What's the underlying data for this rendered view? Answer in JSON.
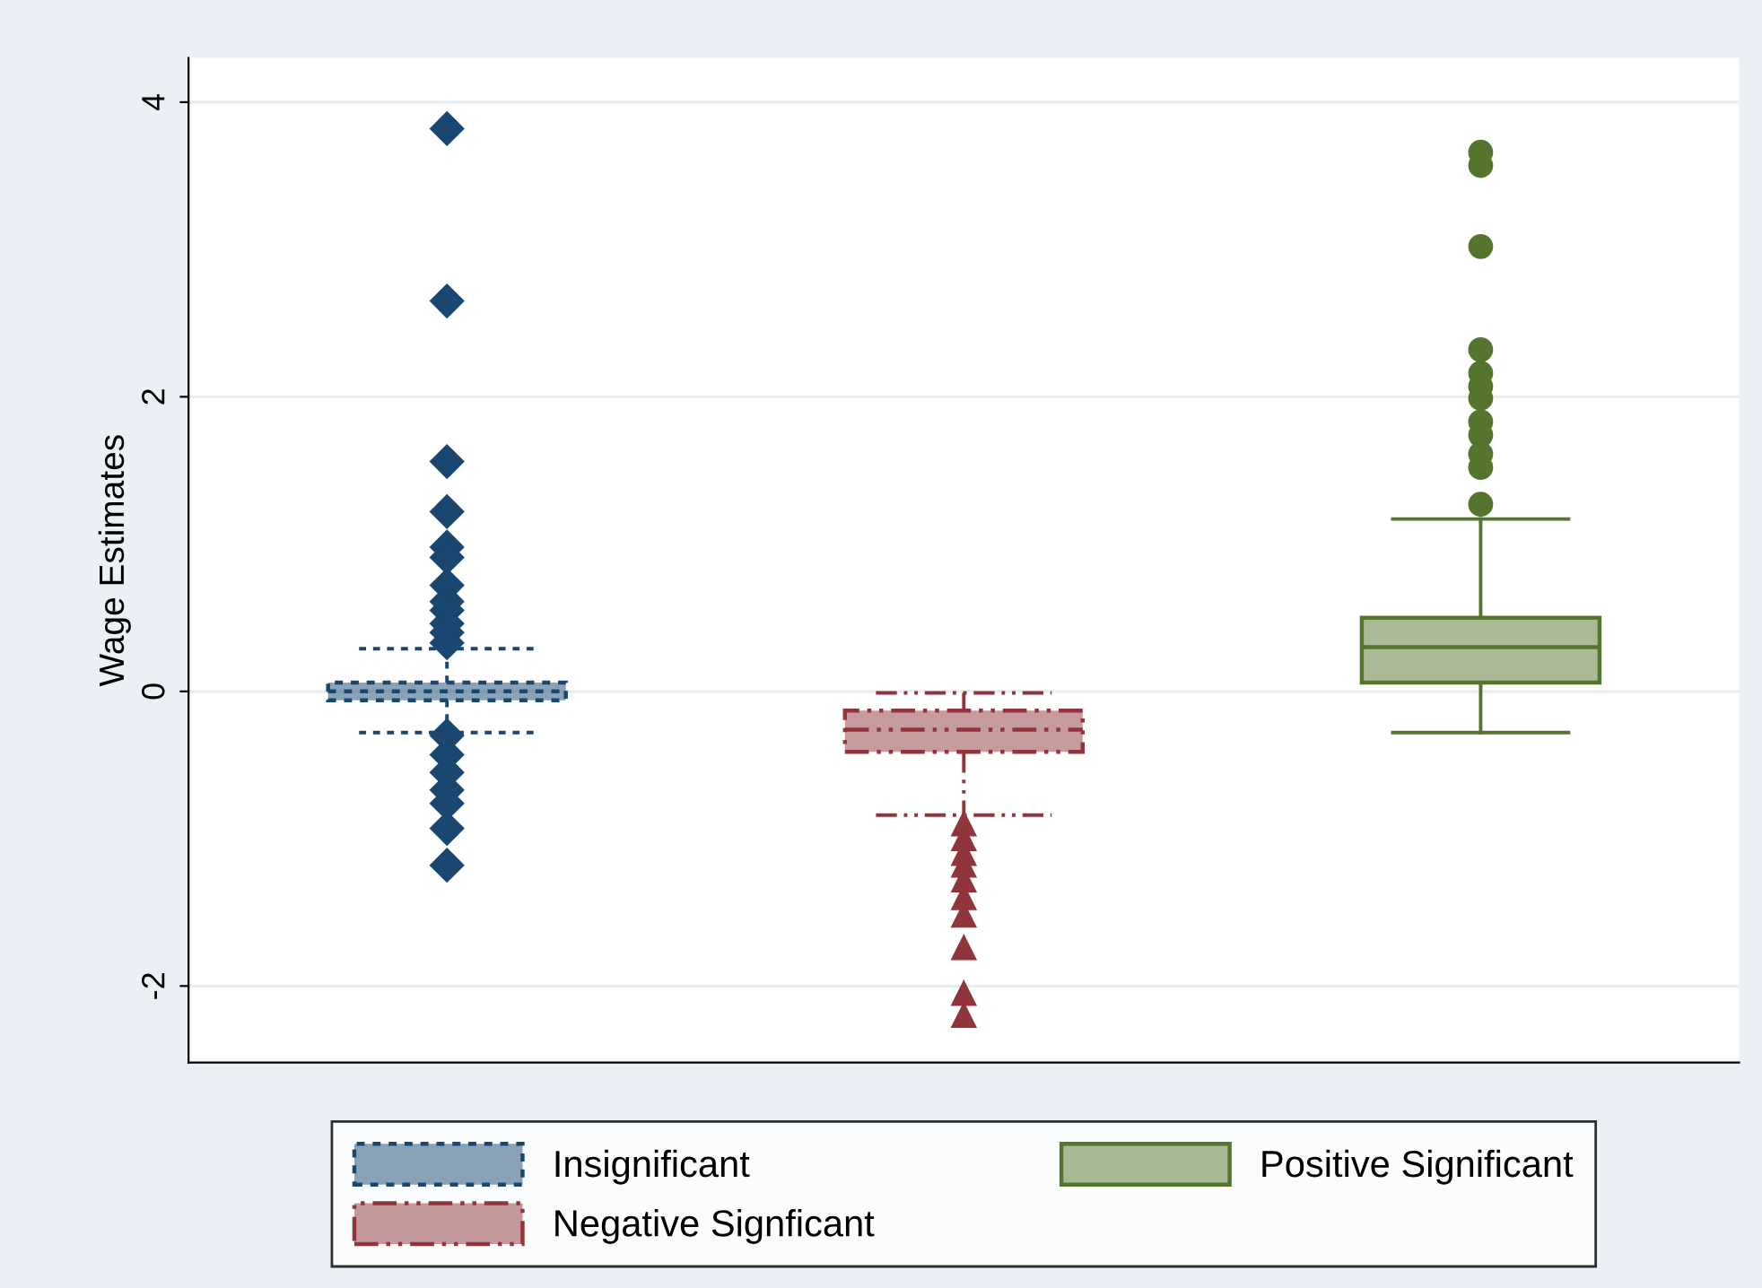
{
  "chart_data": {
    "type": "box",
    "ylabel": "Wage Estimates",
    "categories": [
      null,
      null,
      null
    ],
    "ylim": [
      -2.52,
      4.3
    ],
    "yticks": [
      -2,
      0,
      2,
      4
    ],
    "grid": "y",
    "legend": "bottom",
    "series": [
      {
        "name": "Insignificant",
        "color": "#1a476f",
        "marker": "diamond",
        "line_style": "dotted",
        "boxes": [
          {
            "low": -0.28,
            "q1": -0.06,
            "median": 0,
            "q3": 0.06,
            "high": 0.29,
            "outliers": [
              3.82,
              2.65,
              1.56,
              1.22,
              0.98,
              0.91,
              0.72,
              0.61,
              0.55,
              0.46,
              0.4,
              0.33,
              -0.3,
              -0.43,
              -0.55,
              -0.67,
              -0.76,
              -0.93,
              -1.18
            ]
          },
          null,
          null
        ]
      },
      {
        "name": "Negative Signficant",
        "color": "#90353b",
        "marker": "triangle",
        "line_style": "dashed",
        "boxes": [
          null,
          {
            "low": -0.84,
            "q1": -0.41,
            "median": -0.26,
            "q3": -0.13,
            "high": -0.01,
            "outliers": [
              -0.9,
              -1.0,
              -1.1,
              -1.18,
              -1.28,
              -1.4,
              -1.52,
              -1.74,
              -2.05,
              -2.2
            ]
          },
          null
        ]
      },
      {
        "name": "Positive Significant",
        "color": "#55752f",
        "marker": "circle",
        "line_style": "solid",
        "boxes": [
          null,
          null,
          {
            "low": -0.28,
            "q1": 0.06,
            "median": 0.3,
            "q3": 0.5,
            "high": 1.17,
            "outliers": [
              3.66,
              3.57,
              3.02,
              2.32,
              2.16,
              2.07,
              1.99,
              1.83,
              1.74,
              1.61,
              1.52,
              1.27
            ]
          }
        ]
      }
    ]
  }
}
